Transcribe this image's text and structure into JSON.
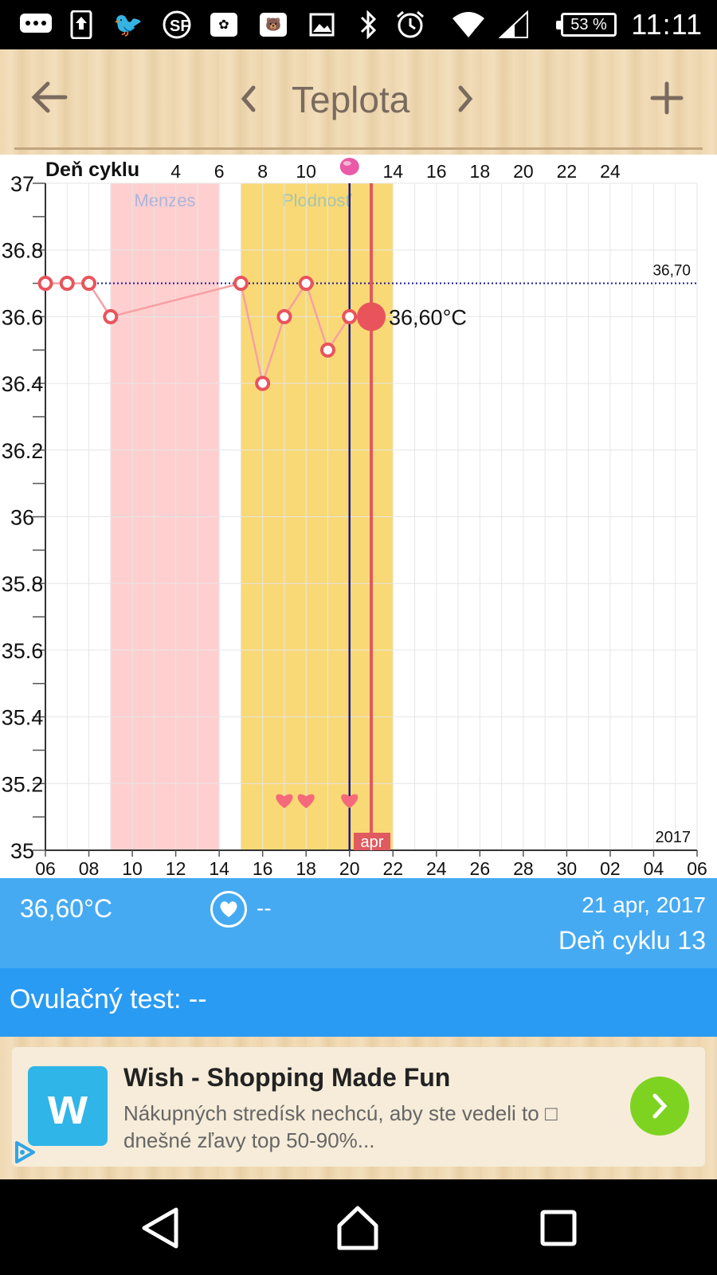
{
  "status_bar": {
    "icons": [
      "chat-icon",
      "upload-icon",
      "bird-icon",
      "sf-icon",
      "flower-icon",
      "bear-icon",
      "image-icon",
      "bluetooth-icon",
      "alarm-icon",
      "wifi-icon",
      "signal-icon"
    ],
    "battery": "53 %",
    "time": "11:11"
  },
  "header": {
    "back_icon": "arrow-left-icon",
    "prev_icon": "chevron-left-icon",
    "title": "Teplota",
    "next_icon": "chevron-right-icon",
    "add_icon": "plus-icon"
  },
  "chart_data": {
    "type": "line",
    "xlabel_top": "Deň cyklu",
    "top_ticks": [
      "4",
      "6",
      "8",
      "10",
      "14",
      "16",
      "18",
      "20",
      "22",
      "24"
    ],
    "top_tick_days": [
      4,
      6,
      8,
      10,
      14,
      16,
      18,
      20,
      22,
      24
    ],
    "top_marker_day": 12,
    "bottom_ticks": [
      "06",
      "08",
      "10",
      "12",
      "14",
      "16",
      "18",
      "20",
      "22",
      "24",
      "26",
      "28",
      "30",
      "02",
      "04",
      "06"
    ],
    "bottom_tick_dates": [
      "2017-04-06",
      "2017-04-08",
      "2017-04-10",
      "2017-04-12",
      "2017-04-14",
      "2017-04-16",
      "2017-04-18",
      "2017-04-20",
      "2017-04-22",
      "2017-04-24",
      "2017-04-26",
      "2017-04-28",
      "2017-04-30",
      "2017-05-02",
      "2017-05-04",
      "2017-05-06"
    ],
    "x_range": [
      "2017-04-06",
      "2017-05-06"
    ],
    "y_ticks": [
      "37",
      "36.8",
      "36.6",
      "36.4",
      "36.2",
      "36",
      "35.8",
      "35.6",
      "35.4",
      "35.2",
      "35"
    ],
    "ylim": [
      35,
      37
    ],
    "year_label": "2017",
    "month_label": "apr",
    "reference_line": {
      "value": 36.7,
      "label": "36,70"
    },
    "bands": [
      {
        "label": "Menzes",
        "start": "2017-04-09",
        "end": "2017-04-14",
        "color": "#ffcfcf"
      },
      {
        "label": "Plodnosť",
        "start": "2017-04-15",
        "end": "2017-04-22",
        "color": "#f9d975"
      }
    ],
    "series": [
      {
        "x": [
          "2017-04-06",
          "2017-04-07",
          "2017-04-08",
          "2017-04-09",
          "2017-04-15",
          "2017-04-16",
          "2017-04-17",
          "2017-04-18",
          "2017-04-19",
          "2017-04-20",
          "2017-04-21"
        ],
        "values": [
          36.7,
          36.7,
          36.7,
          36.6,
          36.7,
          36.4,
          36.6,
          36.7,
          36.5,
          36.6,
          36.6
        ],
        "color": "#f06b73"
      }
    ],
    "selected": {
      "x": "2017-04-21",
      "value": 36.6,
      "label": "36,60°C"
    },
    "ovulation_line": "2017-04-20",
    "intercourse_days": [
      "2017-04-17",
      "2017-04-18",
      "2017-04-20"
    ],
    "colors": {
      "line": "#f6a0a4",
      "point": "#e9535c",
      "selected_line": "#e05a5f",
      "ovulation_line": "#1a1a8a",
      "ref_line": "#1a1a9a",
      "grid": "#e6e6e6"
    }
  },
  "info": {
    "temperature": "36,60°C",
    "heart_icon": "heart-icon",
    "heart_value": "--",
    "date": "21 apr, 2017",
    "cycle_day": "Deň cyklu 13"
  },
  "ovulation": {
    "label": "Ovulačný test:",
    "value": "--"
  },
  "ad": {
    "logo": "w",
    "title": "Wish - Shopping Made Fun",
    "text": "Nákupných stredísk nechcú, aby ste vedeli to □  dnešné zľavy top 50-90%...",
    "go_icon": "chevron-right-icon",
    "adchoices_icon": "adchoices-icon"
  },
  "navbar": {
    "back_icon": "back-triangle-icon",
    "home_icon": "home-icon",
    "recents_icon": "recents-square-icon"
  }
}
